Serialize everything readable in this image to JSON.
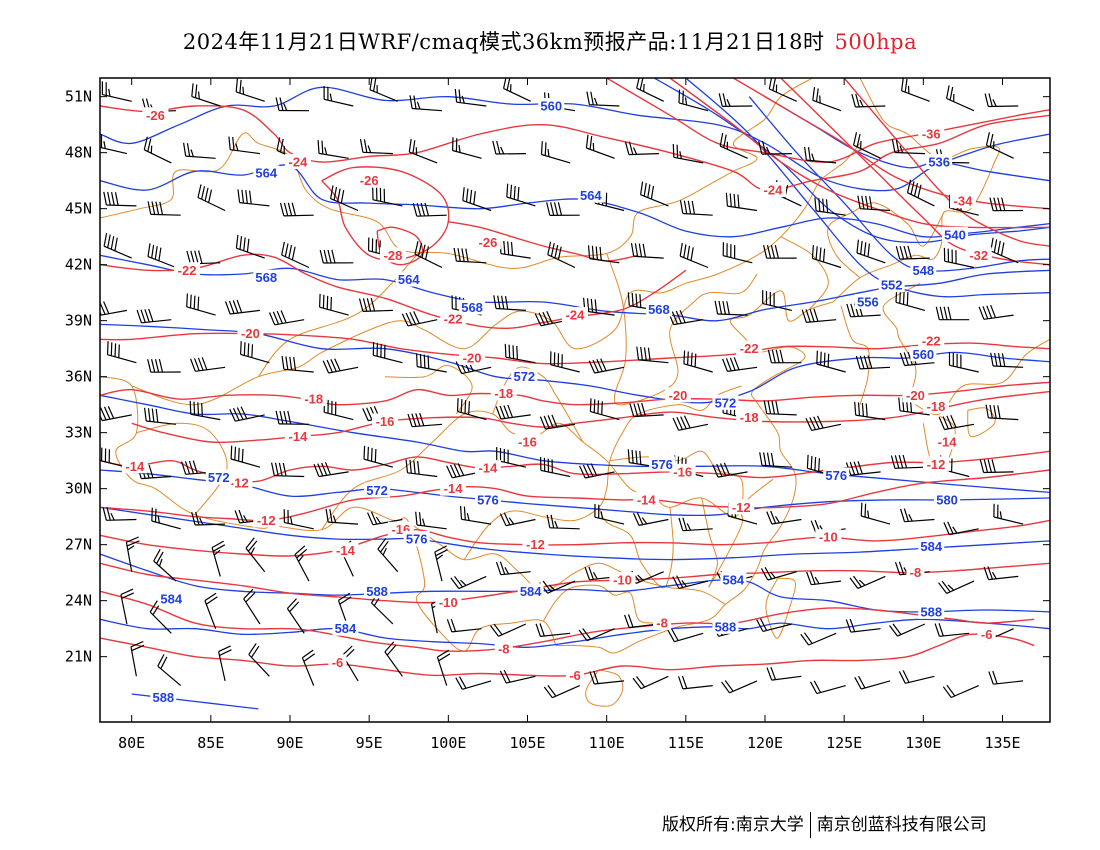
{
  "title": {
    "main": "2024年11月21日WRF/cmaq模式36km预报产品:11月21日18时",
    "level": "500hpa"
  },
  "colors": {
    "temperature": "#e8383d",
    "height": "#1f3fe0",
    "border": "#e08a2c",
    "wind": "#000000",
    "level_text": "#e0242a"
  },
  "axes": {
    "lon_labels": [
      "80E",
      "85E",
      "90E",
      "95E",
      "100E",
      "105E",
      "110E",
      "115E",
      "120E",
      "125E",
      "130E",
      "135E"
    ],
    "lat_labels": [
      "51N",
      "48N",
      "45N",
      "42N",
      "39N",
      "36N",
      "33N",
      "30N",
      "27N",
      "24N",
      "21N"
    ],
    "lon_range": [
      78,
      138
    ],
    "lat_range": [
      17.5,
      52
    ]
  },
  "contours": {
    "temperature_labels": [
      {
        "text": "-26",
        "lon": 81.5,
        "lat": 50
      },
      {
        "text": "-24",
        "lon": 90.5,
        "lat": 47.5
      },
      {
        "text": "-26",
        "lon": 95,
        "lat": 46.5
      },
      {
        "text": "-28",
        "lon": 96.5,
        "lat": 42.5
      },
      {
        "text": "-26",
        "lon": 102.5,
        "lat": 43.2
      },
      {
        "text": "-22",
        "lon": 83.5,
        "lat": 41.7
      },
      {
        "text": "-22",
        "lon": 100.3,
        "lat": 39.1
      },
      {
        "text": "-24",
        "lon": 108,
        "lat": 39.3
      },
      {
        "text": "-20",
        "lon": 87.5,
        "lat": 38.3
      },
      {
        "text": "-20",
        "lon": 101.5,
        "lat": 37
      },
      {
        "text": "-22",
        "lon": 119,
        "lat": 37.5
      },
      {
        "text": "-22",
        "lon": 130.5,
        "lat": 37.9
      },
      {
        "text": "-18",
        "lon": 91.5,
        "lat": 34.8
      },
      {
        "text": "-18",
        "lon": 103.5,
        "lat": 35.1
      },
      {
        "text": "-20",
        "lon": 114.5,
        "lat": 35
      },
      {
        "text": "-20",
        "lon": 129.5,
        "lat": 35
      },
      {
        "text": "-18",
        "lon": 130.8,
        "lat": 34.4
      },
      {
        "text": "-16",
        "lon": 96,
        "lat": 33.6
      },
      {
        "text": "-18",
        "lon": 119,
        "lat": 33.8
      },
      {
        "text": "-14",
        "lon": 90.5,
        "lat": 32.8
      },
      {
        "text": "-16",
        "lon": 105,
        "lat": 32.5
      },
      {
        "text": "-14",
        "lon": 131.5,
        "lat": 32.5
      },
      {
        "text": "-14",
        "lon": 80.2,
        "lat": 31.2
      },
      {
        "text": "-12",
        "lon": 86.8,
        "lat": 30.3
      },
      {
        "text": "-14",
        "lon": 102.5,
        "lat": 31.1
      },
      {
        "text": "-16",
        "lon": 114.8,
        "lat": 30.9
      },
      {
        "text": "-12",
        "lon": 130.8,
        "lat": 31.3
      },
      {
        "text": "-14",
        "lon": 100.3,
        "lat": 30
      },
      {
        "text": "-14",
        "lon": 112.5,
        "lat": 29.4
      },
      {
        "text": "-12",
        "lon": 118.5,
        "lat": 29
      },
      {
        "text": "-12",
        "lon": 88.5,
        "lat": 28.3
      },
      {
        "text": "-16",
        "lon": 97,
        "lat": 27.8
      },
      {
        "text": "-14",
        "lon": 93.5,
        "lat": 26.7
      },
      {
        "text": "-12",
        "lon": 105.5,
        "lat": 27
      },
      {
        "text": "-10",
        "lon": 124,
        "lat": 27.4
      },
      {
        "text": "-8",
        "lon": 129.5,
        "lat": 25.5
      },
      {
        "text": "-10",
        "lon": 111,
        "lat": 25.1
      },
      {
        "text": "-10",
        "lon": 100,
        "lat": 23.9
      },
      {
        "text": "-8",
        "lon": 113.5,
        "lat": 22.8
      },
      {
        "text": "-8",
        "lon": 103.5,
        "lat": 21.4
      },
      {
        "text": "-6",
        "lon": 93,
        "lat": 20.7
      },
      {
        "text": "-6",
        "lon": 108,
        "lat": 20
      },
      {
        "text": "-6",
        "lon": 134,
        "lat": 22.2
      },
      {
        "text": "-24",
        "lon": 120.5,
        "lat": 46
      },
      {
        "text": "-36",
        "lon": 130.5,
        "lat": 49
      },
      {
        "text": "-34",
        "lon": 132.5,
        "lat": 45.4
      },
      {
        "text": "-32",
        "lon": 133.5,
        "lat": 42.5
      }
    ],
    "height_labels": [
      {
        "text": "560",
        "lon": 106.5,
        "lat": 50.5
      },
      {
        "text": "536",
        "lon": 131,
        "lat": 47.5
      },
      {
        "text": "564",
        "lon": 88.5,
        "lat": 46.9
      },
      {
        "text": "564",
        "lon": 109,
        "lat": 45.7
      },
      {
        "text": "540",
        "lon": 132,
        "lat": 43.6
      },
      {
        "text": "548",
        "lon": 130,
        "lat": 41.7
      },
      {
        "text": "552",
        "lon": 128,
        "lat": 40.9
      },
      {
        "text": "556",
        "lon": 126.5,
        "lat": 40
      },
      {
        "text": "568",
        "lon": 88.5,
        "lat": 41.3
      },
      {
        "text": "564",
        "lon": 97.5,
        "lat": 41.2
      },
      {
        "text": "568",
        "lon": 101.5,
        "lat": 39.7
      },
      {
        "text": "568",
        "lon": 113.3,
        "lat": 39.6
      },
      {
        "text": "560",
        "lon": 130,
        "lat": 37.2
      },
      {
        "text": "572",
        "lon": 104.8,
        "lat": 36
      },
      {
        "text": "572",
        "lon": 117.5,
        "lat": 34.6
      },
      {
        "text": "576",
        "lon": 113.5,
        "lat": 31.3
      },
      {
        "text": "576",
        "lon": 124.5,
        "lat": 30.7
      },
      {
        "text": "572",
        "lon": 85.5,
        "lat": 30.6
      },
      {
        "text": "572",
        "lon": 95.5,
        "lat": 29.9
      },
      {
        "text": "576",
        "lon": 102.5,
        "lat": 29.4
      },
      {
        "text": "580",
        "lon": 131.5,
        "lat": 29.4
      },
      {
        "text": "576",
        "lon": 98,
        "lat": 27.3
      },
      {
        "text": "584",
        "lon": 130.5,
        "lat": 26.9
      },
      {
        "text": "584",
        "lon": 118,
        "lat": 25.1
      },
      {
        "text": "588",
        "lon": 95.5,
        "lat": 24.5
      },
      {
        "text": "584",
        "lon": 105.2,
        "lat": 24.5
      },
      {
        "text": "584",
        "lon": 82.5,
        "lat": 24.1
      },
      {
        "text": "584",
        "lon": 93.5,
        "lat": 22.5
      },
      {
        "text": "588",
        "lon": 117.5,
        "lat": 22.6
      },
      {
        "text": "588",
        "lon": 130.5,
        "lat": 23.4
      },
      {
        "text": "588",
        "lon": 82,
        "lat": 18.8
      }
    ]
  },
  "footer": {
    "copyright": "版权所有:南京大学",
    "company": "南京创蓝科技有限公司"
  }
}
